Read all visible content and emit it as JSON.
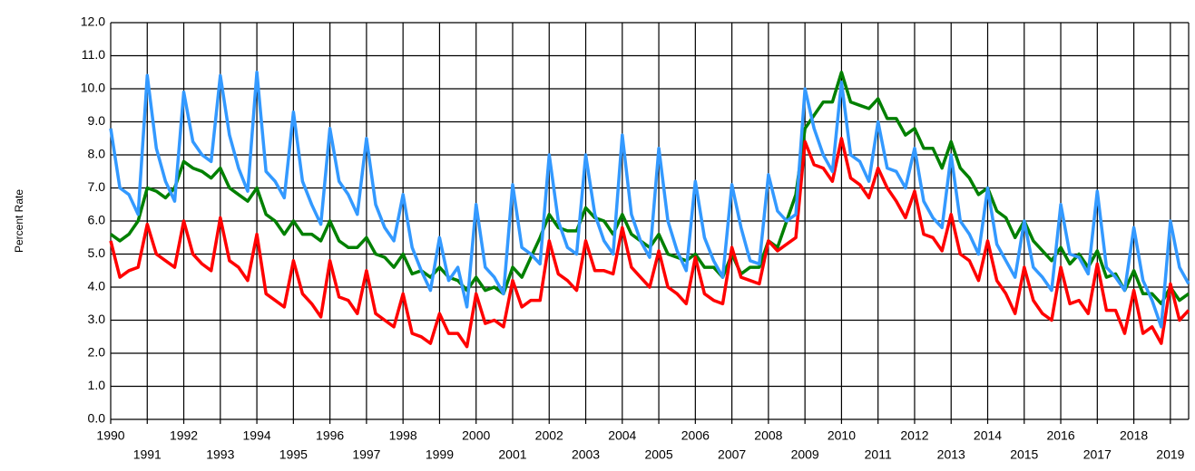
{
  "chart_data": {
    "type": "line",
    "y_label": "Percent Rate",
    "x": [
      1990,
      1990.25,
      1990.5,
      1990.75,
      1991,
      1991.25,
      1991.5,
      1991.75,
      1992,
      1992.25,
      1992.5,
      1992.75,
      1993,
      1993.25,
      1993.5,
      1993.75,
      1994,
      1994.25,
      1994.5,
      1994.75,
      1995,
      1995.25,
      1995.5,
      1995.75,
      1996,
      1996.25,
      1996.5,
      1996.75,
      1997,
      1997.25,
      1997.5,
      1997.75,
      1998,
      1998.25,
      1998.5,
      1998.75,
      1999,
      1999.25,
      1999.5,
      1999.75,
      2000,
      2000.25,
      2000.5,
      2000.75,
      2001,
      2001.25,
      2001.5,
      2001.75,
      2002,
      2002.25,
      2002.5,
      2002.75,
      2003,
      2003.25,
      2003.5,
      2003.75,
      2004,
      2004.25,
      2004.5,
      2004.75,
      2005,
      2005.25,
      2005.5,
      2005.75,
      2006,
      2006.25,
      2006.5,
      2006.75,
      2007,
      2007.25,
      2007.5,
      2007.75,
      2008,
      2008.25,
      2008.5,
      2008.75,
      2009,
      2009.25,
      2009.5,
      2009.75,
      2010,
      2010.25,
      2010.5,
      2010.75,
      2011,
      2011.25,
      2011.5,
      2011.75,
      2012,
      2012.25,
      2012.5,
      2012.75,
      2013,
      2013.25,
      2013.5,
      2013.75,
      2014,
      2014.25,
      2014.5,
      2014.75,
      2015,
      2015.25,
      2015.5,
      2015.75,
      2016,
      2016.25,
      2016.5,
      2016.75,
      2017,
      2017.25,
      2017.5,
      2017.75,
      2018,
      2018.25,
      2018.5,
      2018.75,
      2019,
      2019.25,
      2019.5
    ],
    "series": [
      {
        "color": "#008000",
        "values": [
          5.6,
          5.4,
          5.6,
          6.0,
          7.0,
          6.9,
          6.7,
          7.0,
          7.8,
          7.6,
          7.5,
          7.3,
          7.6,
          7.0,
          6.8,
          6.6,
          7.0,
          6.2,
          6.0,
          5.6,
          6.0,
          5.6,
          5.6,
          5.4,
          6.0,
          5.4,
          5.2,
          5.2,
          5.5,
          5.0,
          4.9,
          4.6,
          5.0,
          4.4,
          4.5,
          4.3,
          4.6,
          4.3,
          4.2,
          3.9,
          4.3,
          3.9,
          4.0,
          3.8,
          4.6,
          4.3,
          4.9,
          5.5,
          6.2,
          5.8,
          5.7,
          5.7,
          6.4,
          6.1,
          6.0,
          5.6,
          6.2,
          5.6,
          5.4,
          5.2,
          5.6,
          5.0,
          4.9,
          4.8,
          5.0,
          4.6,
          4.6,
          4.3,
          5.0,
          4.4,
          4.6,
          4.6,
          5.4,
          5.2,
          6.0,
          6.8,
          8.8,
          9.2,
          9.6,
          9.6,
          10.5,
          9.6,
          9.5,
          9.4,
          9.7,
          9.1,
          9.1,
          8.6,
          8.8,
          8.2,
          8.2,
          7.6,
          8.4,
          7.6,
          7.3,
          6.8,
          7.0,
          6.3,
          6.1,
          5.5,
          6.0,
          5.4,
          5.1,
          4.8,
          5.2,
          4.7,
          5.0,
          4.6,
          5.1,
          4.3,
          4.4,
          3.9,
          4.5,
          3.8,
          3.8,
          3.5,
          4.0,
          3.6,
          3.8
        ]
      },
      {
        "color": "#ff0000",
        "values": [
          5.4,
          4.3,
          4.5,
          4.6,
          5.9,
          5.0,
          4.8,
          4.6,
          6.0,
          5.0,
          4.7,
          4.5,
          6.1,
          4.8,
          4.6,
          4.2,
          5.6,
          3.8,
          3.6,
          3.4,
          4.8,
          3.8,
          3.5,
          3.1,
          4.8,
          3.7,
          3.6,
          3.2,
          4.5,
          3.2,
          3.0,
          2.8,
          3.8,
          2.6,
          2.5,
          2.3,
          3.2,
          2.6,
          2.6,
          2.2,
          3.8,
          2.9,
          3.0,
          2.8,
          4.2,
          3.4,
          3.6,
          3.6,
          5.4,
          4.4,
          4.2,
          3.9,
          5.4,
          4.5,
          4.5,
          4.4,
          5.8,
          4.6,
          4.3,
          4.0,
          5.1,
          4.0,
          3.8,
          3.5,
          4.9,
          3.8,
          3.6,
          3.5,
          5.2,
          4.3,
          4.2,
          4.1,
          5.4,
          5.1,
          5.3,
          5.5,
          8.4,
          7.7,
          7.6,
          7.2,
          8.5,
          7.3,
          7.1,
          6.7,
          7.6,
          7.0,
          6.6,
          6.1,
          6.9,
          5.6,
          5.5,
          5.1,
          6.2,
          5.0,
          4.8,
          4.2,
          5.4,
          4.2,
          3.8,
          3.2,
          4.6,
          3.6,
          3.2,
          3.0,
          4.6,
          3.5,
          3.6,
          3.2,
          4.7,
          3.3,
          3.3,
          2.6,
          3.9,
          2.6,
          2.8,
          2.3,
          4.1,
          3.0,
          3.3
        ]
      },
      {
        "color": "#3399ff",
        "values": [
          8.8,
          7.0,
          6.8,
          6.2,
          10.4,
          8.2,
          7.2,
          6.6,
          9.9,
          8.4,
          8.0,
          7.8,
          10.4,
          8.6,
          7.6,
          6.9,
          10.5,
          7.5,
          7.2,
          6.7,
          9.3,
          7.2,
          6.5,
          5.9,
          8.8,
          7.2,
          6.8,
          6.2,
          8.5,
          6.5,
          5.8,
          5.4,
          6.8,
          5.2,
          4.5,
          3.9,
          5.5,
          4.2,
          4.6,
          3.4,
          6.5,
          4.6,
          4.3,
          3.8,
          7.1,
          5.2,
          5.0,
          4.7,
          8.0,
          6.0,
          5.2,
          5.0,
          8.0,
          6.2,
          5.4,
          5.0,
          8.6,
          6.2,
          5.4,
          4.9,
          8.2,
          6.0,
          5.1,
          4.5,
          7.2,
          5.5,
          4.8,
          4.3,
          7.1,
          5.8,
          4.8,
          4.7,
          7.4,
          6.3,
          6.0,
          6.2,
          10.0,
          8.8,
          8.0,
          7.5,
          10.2,
          8.0,
          7.8,
          7.2,
          9.0,
          7.6,
          7.5,
          7.0,
          8.2,
          6.6,
          6.1,
          5.8,
          8.0,
          6.0,
          5.6,
          5.0,
          7.0,
          5.3,
          4.8,
          4.3,
          6.0,
          4.6,
          4.3,
          3.9,
          6.5,
          5.0,
          4.9,
          4.4,
          6.9,
          4.6,
          4.3,
          3.9,
          5.8,
          4.2,
          3.6,
          2.8,
          6.0,
          4.6,
          4.1
        ]
      }
    ],
    "xlim": [
      1990,
      2019.5
    ],
    "xticks": [
      1990,
      1991,
      1992,
      1993,
      1994,
      1995,
      1996,
      1997,
      1998,
      1999,
      2000,
      2001,
      2002,
      2003,
      2004,
      2005,
      2006,
      2007,
      2008,
      2009,
      2010,
      2011,
      2012,
      2013,
      2014,
      2015,
      2016,
      2017,
      2018,
      2019
    ],
    "ylim": [
      0,
      12
    ],
    "yticks": [
      {
        "value": 0,
        "label": "0.0"
      },
      {
        "value": 1,
        "label": "1.0"
      },
      {
        "value": 2,
        "label": "2.0"
      },
      {
        "value": 3,
        "label": "3.0"
      },
      {
        "value": 4,
        "label": "4.0"
      },
      {
        "value": 5,
        "label": "5.0"
      },
      {
        "value": 6,
        "label": "6.0"
      },
      {
        "value": 7,
        "label": "7.0"
      },
      {
        "value": 8,
        "label": "8.0"
      },
      {
        "value": 9,
        "label": "9.0"
      },
      {
        "value": 10,
        "label": "10.0"
      },
      {
        "value": 11,
        "label": "11.0"
      },
      {
        "value": 12,
        "label": "12.0"
      }
    ],
    "grid": true
  }
}
